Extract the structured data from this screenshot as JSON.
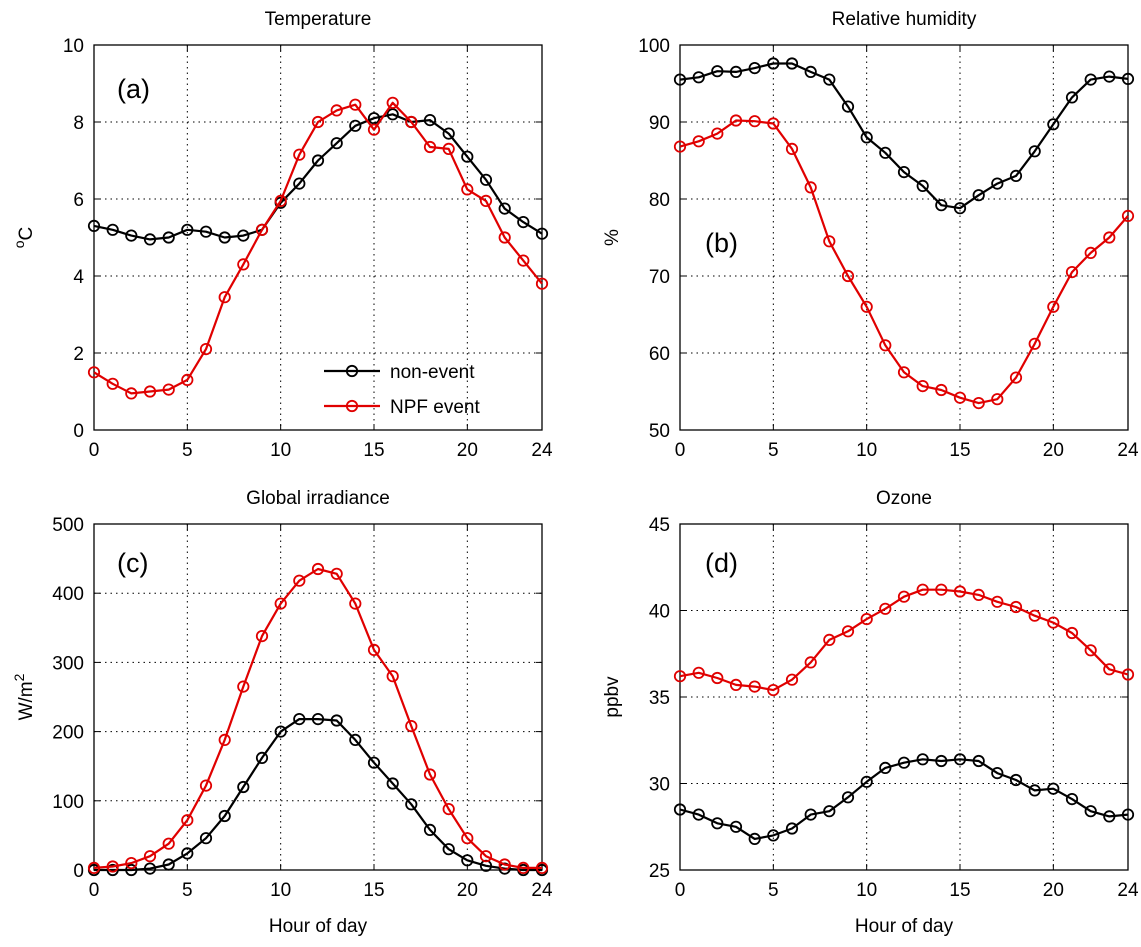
{
  "chart_data": [
    {
      "type": "line",
      "title": "Temperature",
      "panel_label": "(a)",
      "xlabel": "",
      "ylabel": "oC",
      "xlim": [
        0,
        24
      ],
      "ylim": [
        0,
        10
      ],
      "xticks": [
        0,
        5,
        10,
        15,
        20,
        24
      ],
      "yticks": [
        0,
        2,
        4,
        6,
        8,
        10
      ],
      "grid": true,
      "legend": "center-right",
      "series": [
        {
          "name": "non-event",
          "color": "#000000",
          "x": [
            0,
            1,
            2,
            3,
            4,
            5,
            6,
            7,
            8,
            9,
            10,
            11,
            12,
            13,
            14,
            15,
            16,
            17,
            18,
            19,
            20,
            21,
            22,
            23,
            24
          ],
          "values": [
            5.3,
            5.2,
            5.05,
            4.95,
            5.0,
            5.2,
            5.15,
            5.0,
            5.05,
            5.2,
            5.9,
            6.4,
            7.0,
            7.45,
            7.9,
            8.1,
            8.2,
            8.0,
            8.05,
            7.7,
            7.1,
            6.5,
            5.75,
            5.4,
            5.1
          ]
        },
        {
          "name": "NPF event",
          "color": "#e00000",
          "x": [
            0,
            1,
            2,
            3,
            4,
            5,
            6,
            7,
            8,
            9,
            10,
            11,
            12,
            13,
            14,
            15,
            16,
            17,
            18,
            19,
            20,
            21,
            22,
            23,
            24
          ],
          "values": [
            1.5,
            1.2,
            0.95,
            1.0,
            1.05,
            1.3,
            2.1,
            3.45,
            4.3,
            5.2,
            5.95,
            7.15,
            8.0,
            8.3,
            8.45,
            7.8,
            8.5,
            8.0,
            7.35,
            7.3,
            6.25,
            5.95,
            5.0,
            4.4,
            3.8
          ]
        }
      ]
    },
    {
      "type": "line",
      "title": "Relative humidity",
      "panel_label": "(b)",
      "xlabel": "",
      "ylabel": "%",
      "xlim": [
        0,
        24
      ],
      "ylim": [
        50,
        100
      ],
      "xticks": [
        0,
        5,
        10,
        15,
        20,
        24
      ],
      "yticks": [
        50,
        60,
        70,
        80,
        90,
        100
      ],
      "grid": true,
      "series": [
        {
          "color": "#000000",
          "x": [
            0,
            1,
            2,
            3,
            4,
            5,
            6,
            7,
            8,
            9,
            10,
            11,
            12,
            13,
            14,
            15,
            16,
            17,
            18,
            19,
            20,
            21,
            22,
            23,
            24
          ],
          "values": [
            95.5,
            95.8,
            96.6,
            96.5,
            97.0,
            97.6,
            97.6,
            96.5,
            95.5,
            92.0,
            88.0,
            86.0,
            83.5,
            81.7,
            79.2,
            78.8,
            80.5,
            82.0,
            83.0,
            86.2,
            89.7,
            93.2,
            95.5,
            95.9,
            95.6
          ]
        },
        {
          "color": "#e00000",
          "x": [
            0,
            1,
            2,
            3,
            4,
            5,
            6,
            7,
            8,
            9,
            10,
            11,
            12,
            13,
            14,
            15,
            16,
            17,
            18,
            19,
            20,
            21,
            22,
            23,
            24
          ],
          "values": [
            86.8,
            87.5,
            88.5,
            90.2,
            90.1,
            89.8,
            86.5,
            81.5,
            74.5,
            70.0,
            66.0,
            61.0,
            57.5,
            55.7,
            55.2,
            54.2,
            53.5,
            54.0,
            56.8,
            61.2,
            66.0,
            70.5,
            73.0,
            75.0,
            77.8
          ]
        }
      ]
    },
    {
      "type": "line",
      "title": "Global irradiance",
      "panel_label": "(c)",
      "xlabel": "Hour of day",
      "ylabel": "W/m2",
      "xlim": [
        0,
        24
      ],
      "ylim": [
        0,
        500
      ],
      "xticks": [
        0,
        5,
        10,
        15,
        20,
        24
      ],
      "yticks": [
        0,
        100,
        200,
        300,
        400,
        500
      ],
      "grid": true,
      "series": [
        {
          "color": "#000000",
          "x": [
            0,
            1,
            2,
            3,
            4,
            5,
            6,
            7,
            8,
            9,
            10,
            11,
            12,
            13,
            14,
            15,
            16,
            17,
            18,
            19,
            20,
            21,
            22,
            23,
            24
          ],
          "values": [
            0,
            0,
            0,
            2,
            8,
            24,
            46,
            78,
            120,
            162,
            200,
            218,
            218,
            216,
            188,
            155,
            125,
            95,
            58,
            30,
            14,
            6,
            2,
            0,
            0
          ]
        },
        {
          "color": "#e00000",
          "x": [
            0,
            1,
            2,
            3,
            4,
            5,
            6,
            7,
            8,
            9,
            10,
            11,
            12,
            13,
            14,
            15,
            16,
            17,
            18,
            19,
            20,
            21,
            22,
            23,
            24
          ],
          "values": [
            3,
            5,
            10,
            20,
            38,
            72,
            122,
            188,
            265,
            338,
            385,
            418,
            435,
            428,
            385,
            318,
            280,
            208,
            138,
            88,
            46,
            20,
            8,
            3,
            3
          ]
        }
      ]
    },
    {
      "type": "line",
      "title": "Ozone",
      "panel_label": "(d)",
      "xlabel": "Hour of day",
      "ylabel": "ppbv",
      "xlim": [
        0,
        24
      ],
      "ylim": [
        25,
        45
      ],
      "xticks": [
        0,
        5,
        10,
        15,
        20,
        24
      ],
      "yticks": [
        25,
        30,
        35,
        40,
        45
      ],
      "grid": true,
      "series": [
        {
          "color": "#000000",
          "x": [
            0,
            1,
            2,
            3,
            4,
            5,
            6,
            7,
            8,
            9,
            10,
            11,
            12,
            13,
            14,
            15,
            16,
            17,
            18,
            19,
            20,
            21,
            22,
            23,
            24
          ],
          "values": [
            28.5,
            28.2,
            27.7,
            27.5,
            26.8,
            27.0,
            27.4,
            28.2,
            28.4,
            29.2,
            30.1,
            30.9,
            31.2,
            31.4,
            31.3,
            31.4,
            31.3,
            30.6,
            30.2,
            29.6,
            29.7,
            29.1,
            28.4,
            28.1,
            28.2
          ]
        },
        {
          "color": "#e00000",
          "x": [
            0,
            1,
            2,
            3,
            4,
            5,
            6,
            7,
            8,
            9,
            10,
            11,
            12,
            13,
            14,
            15,
            16,
            17,
            18,
            19,
            20,
            21,
            22,
            23,
            24
          ],
          "values": [
            36.2,
            36.4,
            36.1,
            35.7,
            35.6,
            35.4,
            36.0,
            37.0,
            38.3,
            38.8,
            39.5,
            40.1,
            40.8,
            41.2,
            41.2,
            41.1,
            40.9,
            40.5,
            40.2,
            39.7,
            39.3,
            38.7,
            37.7,
            36.6,
            36.3
          ]
        }
      ]
    }
  ]
}
